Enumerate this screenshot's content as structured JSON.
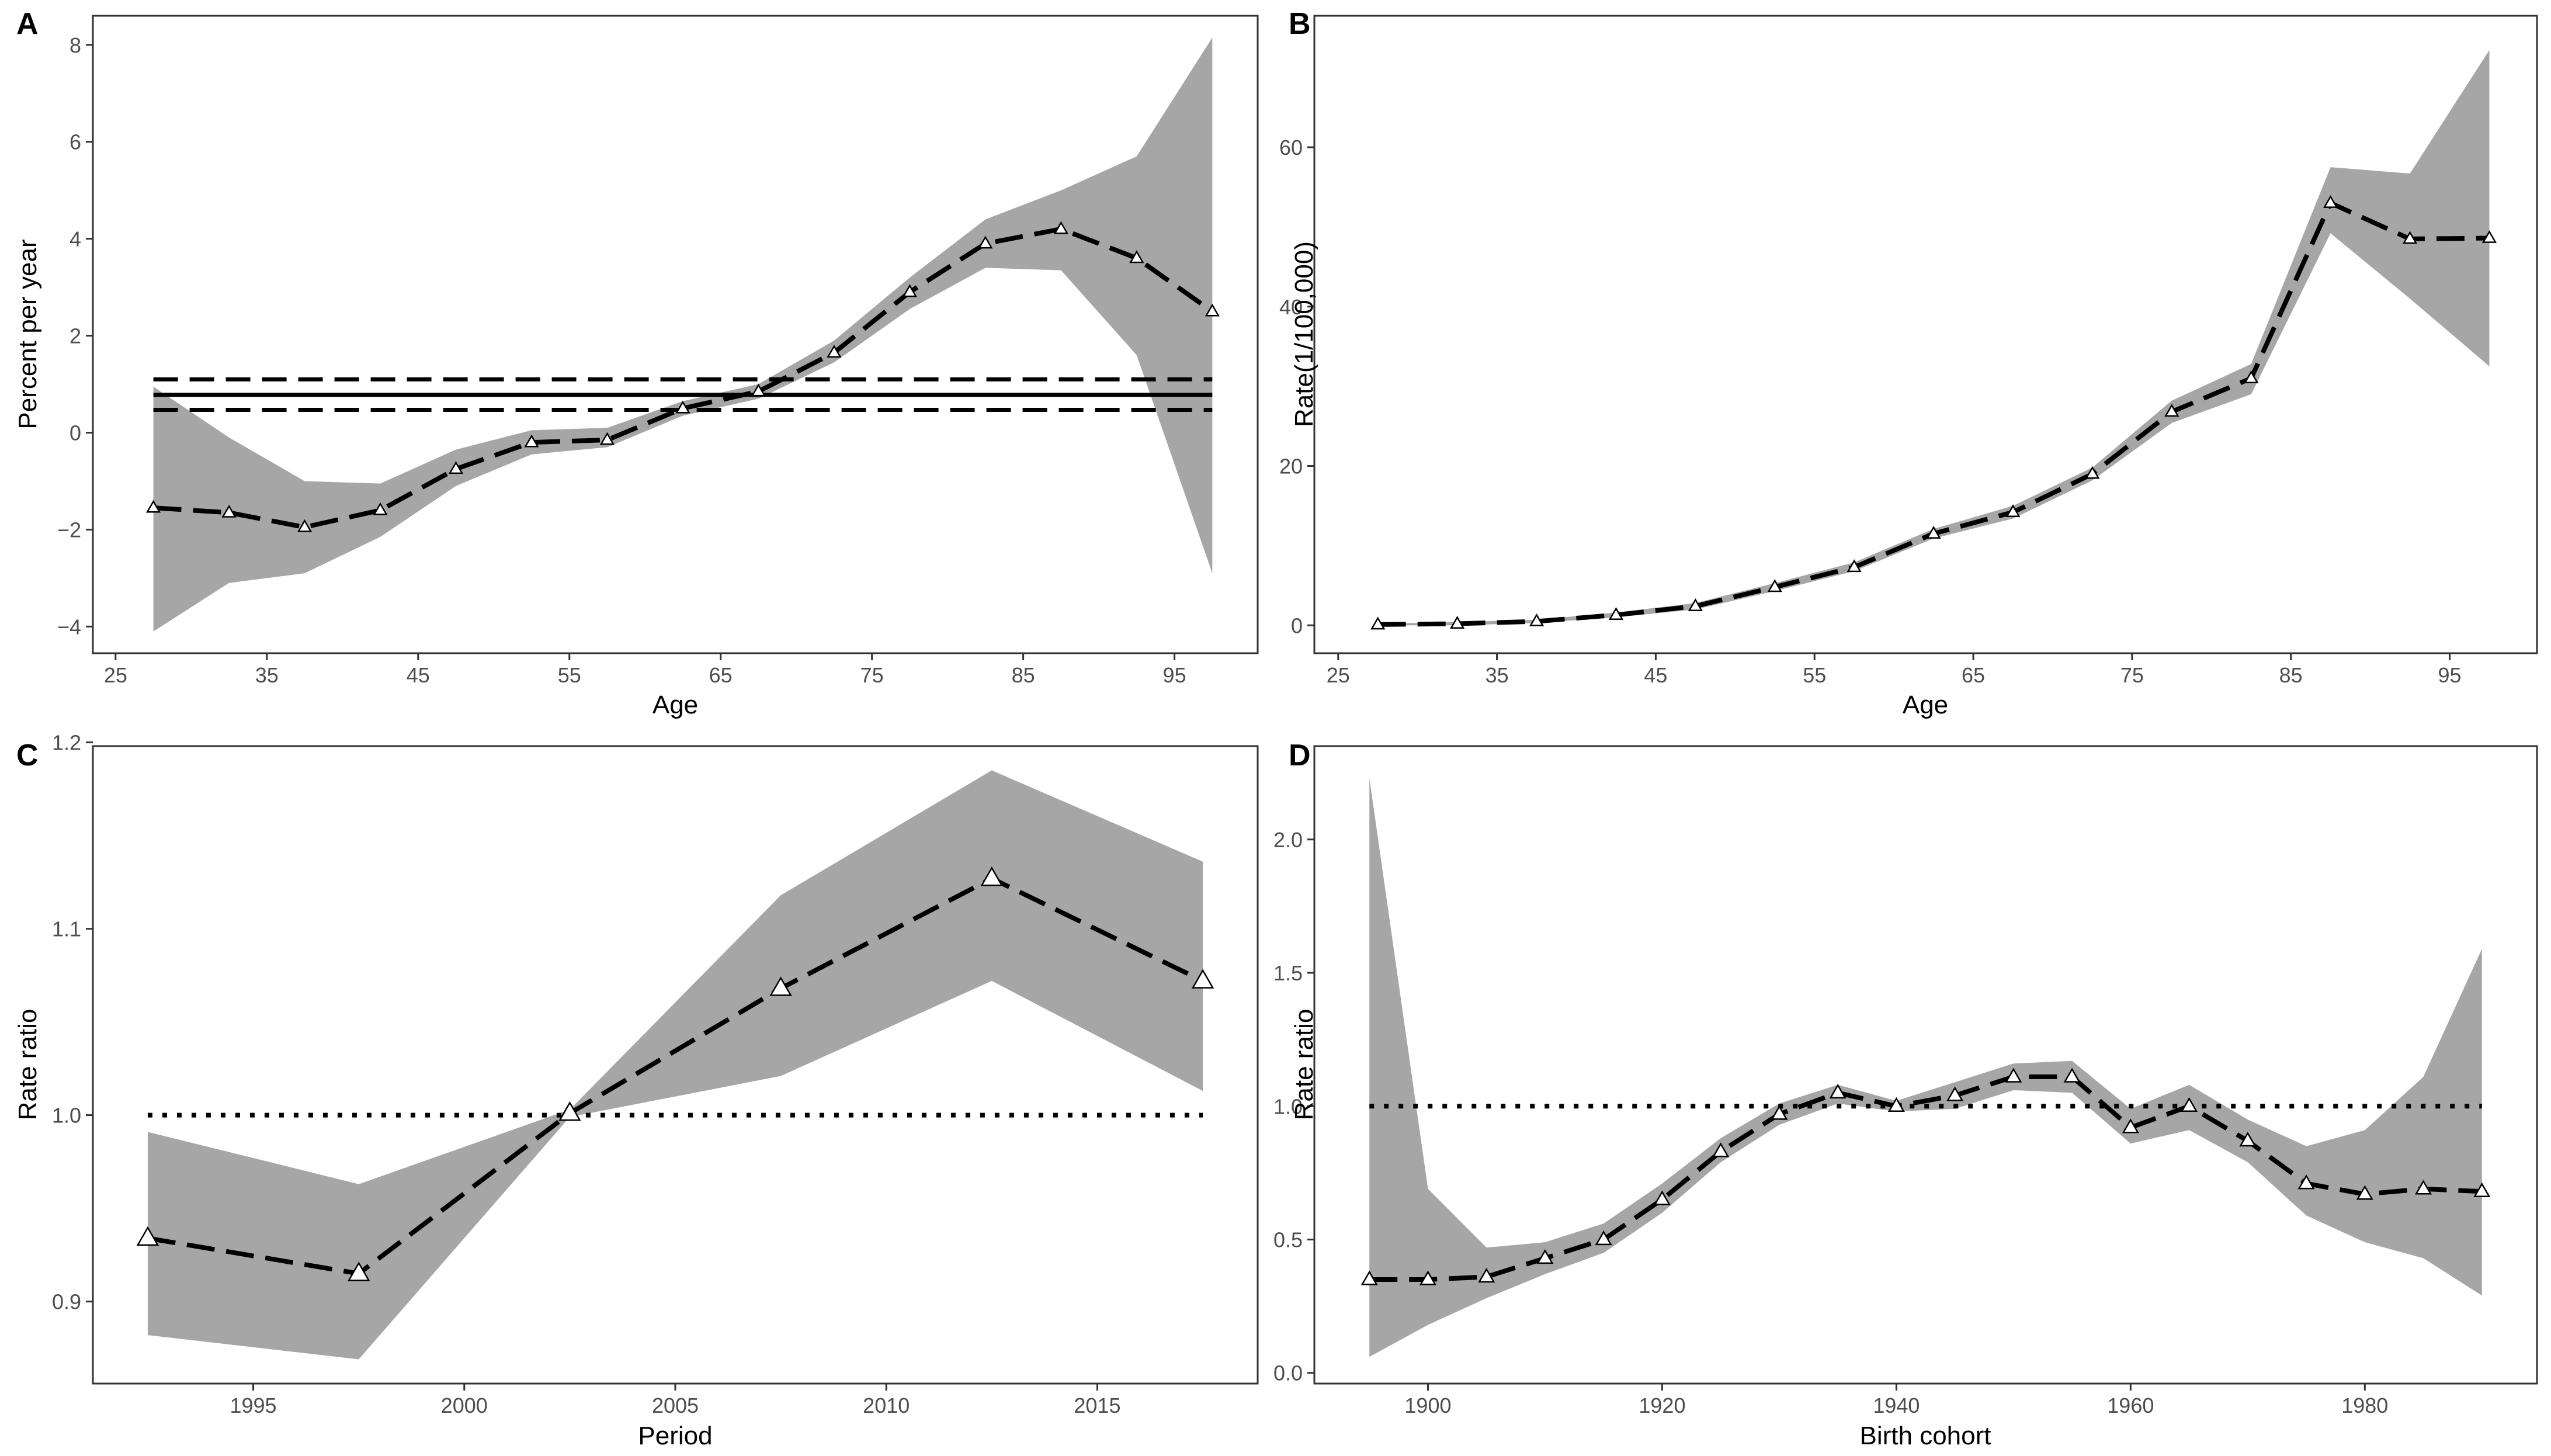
{
  "chart_data": [
    {
      "panel": "A",
      "type": "line",
      "xlabel": "Age",
      "ylabel": "Percent per year",
      "xlim": [
        23.5,
        100.5
      ],
      "ylim": [
        -4.55,
        8.6
      ],
      "xticks": [
        25,
        35,
        45,
        55,
        65,
        75,
        85,
        95
      ],
      "yticks": [
        -4,
        -2,
        0,
        2,
        4,
        6,
        8
      ],
      "x": [
        27.5,
        32.5,
        37.5,
        42.5,
        47.5,
        52.5,
        57.5,
        62.5,
        67.5,
        72.5,
        77.5,
        82.5,
        87.5,
        92.5,
        97.5
      ],
      "values": [
        -1.55,
        -1.65,
        -1.95,
        -1.6,
        -0.75,
        -0.2,
        -0.15,
        0.5,
        0.85,
        1.65,
        2.9,
        3.9,
        4.2,
        3.6,
        2.5
      ],
      "lower": [
        -4.1,
        -3.1,
        -2.9,
        -2.15,
        -1.1,
        -0.45,
        -0.3,
        0.35,
        0.7,
        1.45,
        2.55,
        3.4,
        3.35,
        1.6,
        -2.9
      ],
      "upper": [
        0.95,
        -0.1,
        -1.0,
        -1.05,
        -0.35,
        0.05,
        0.1,
        0.65,
        1.0,
        1.9,
        3.2,
        4.4,
        5.0,
        5.7,
        8.15
      ],
      "reference": {
        "solid": 0.78,
        "dashed": [
          0.47,
          1.1
        ]
      }
    },
    {
      "panel": "B",
      "type": "line",
      "xlabel": "Age",
      "ylabel": "Rate(1/100,000)",
      "xlim": [
        23.5,
        100.5
      ],
      "ylim": [
        -3.5,
        76.5
      ],
      "xticks": [
        25,
        35,
        45,
        55,
        65,
        75,
        85,
        95
      ],
      "yticks": [
        0,
        20,
        40,
        60
      ],
      "x": [
        27.5,
        32.5,
        37.5,
        42.5,
        47.5,
        52.5,
        57.5,
        62.5,
        67.5,
        72.5,
        77.5,
        82.5,
        87.5,
        92.5,
        97.5
      ],
      "values": [
        0.1,
        0.2,
        0.5,
        1.3,
        2.4,
        4.8,
        7.3,
        11.5,
        14.2,
        19.0,
        26.8,
        31.0,
        53.0,
        48.5,
        48.6
      ],
      "lower": [
        0.0,
        0.0,
        0.3,
        1.0,
        2.0,
        4.3,
        6.8,
        10.9,
        13.4,
        18.2,
        25.4,
        29.0,
        49.2,
        41.0,
        32.5
      ],
      "upper": [
        0.2,
        0.4,
        0.7,
        1.6,
        2.8,
        5.3,
        7.9,
        12.1,
        15.0,
        19.8,
        28.2,
        32.8,
        57.5,
        56.7,
        72.2
      ]
    },
    {
      "panel": "C",
      "type": "line",
      "xlabel": "Period",
      "ylabel": "Rate ratio",
      "xlim": [
        1991.2,
        2018.8
      ],
      "ylim": [
        0.856,
        1.198
      ],
      "xticks": [
        1995,
        2000,
        2005,
        2010,
        2015
      ],
      "yticks": [
        0.9,
        1.0,
        1.1,
        1.2
      ],
      "x": [
        1992.5,
        1997.5,
        2002.5,
        2007.5,
        2012.5,
        2017.5
      ],
      "values": [
        0.934,
        0.915,
        1.001,
        1.068,
        1.127,
        1.072
      ],
      "lower": [
        0.882,
        0.869,
        0.999,
        1.021,
        1.072,
        1.013
      ],
      "upper": [
        0.991,
        0.963,
        1.003,
        1.118,
        1.185,
        1.136
      ],
      "reference": {
        "dotted": 1.0
      }
    },
    {
      "panel": "D",
      "type": "line",
      "xlabel": "Birth cohort",
      "ylabel": "Rate ratio",
      "xlim": [
        1890.3,
        1994.7
      ],
      "ylim": [
        -0.04,
        2.35
      ],
      "xticks": [
        1900,
        1920,
        1940,
        1960,
        1980
      ],
      "yticks": [
        0.0,
        0.5,
        1.0,
        1.5,
        2.0
      ],
      "x": [
        1895,
        1900,
        1905,
        1910,
        1915,
        1920,
        1925,
        1930,
        1935,
        1940,
        1945,
        1950,
        1955,
        1960,
        1965,
        1970,
        1975,
        1980,
        1985,
        1990
      ],
      "values": [
        0.35,
        0.35,
        0.36,
        0.43,
        0.5,
        0.65,
        0.83,
        0.97,
        1.05,
        1.0,
        1.04,
        1.11,
        1.11,
        0.92,
        1.0,
        0.87,
        0.71,
        0.67,
        0.69,
        0.68
      ],
      "lower": [
        0.06,
        0.18,
        0.28,
        0.37,
        0.45,
        0.6,
        0.79,
        0.93,
        1.01,
        0.98,
        0.99,
        1.06,
        1.05,
        0.86,
        0.91,
        0.79,
        0.59,
        0.49,
        0.43,
        0.29
      ],
      "upper": [
        2.23,
        0.69,
        0.47,
        0.49,
        0.56,
        0.71,
        0.88,
        1.01,
        1.08,
        1.02,
        1.09,
        1.16,
        1.17,
        0.99,
        1.08,
        0.95,
        0.85,
        0.91,
        1.11,
        1.59
      ],
      "reference": {
        "dotted": 1.0
      }
    }
  ]
}
